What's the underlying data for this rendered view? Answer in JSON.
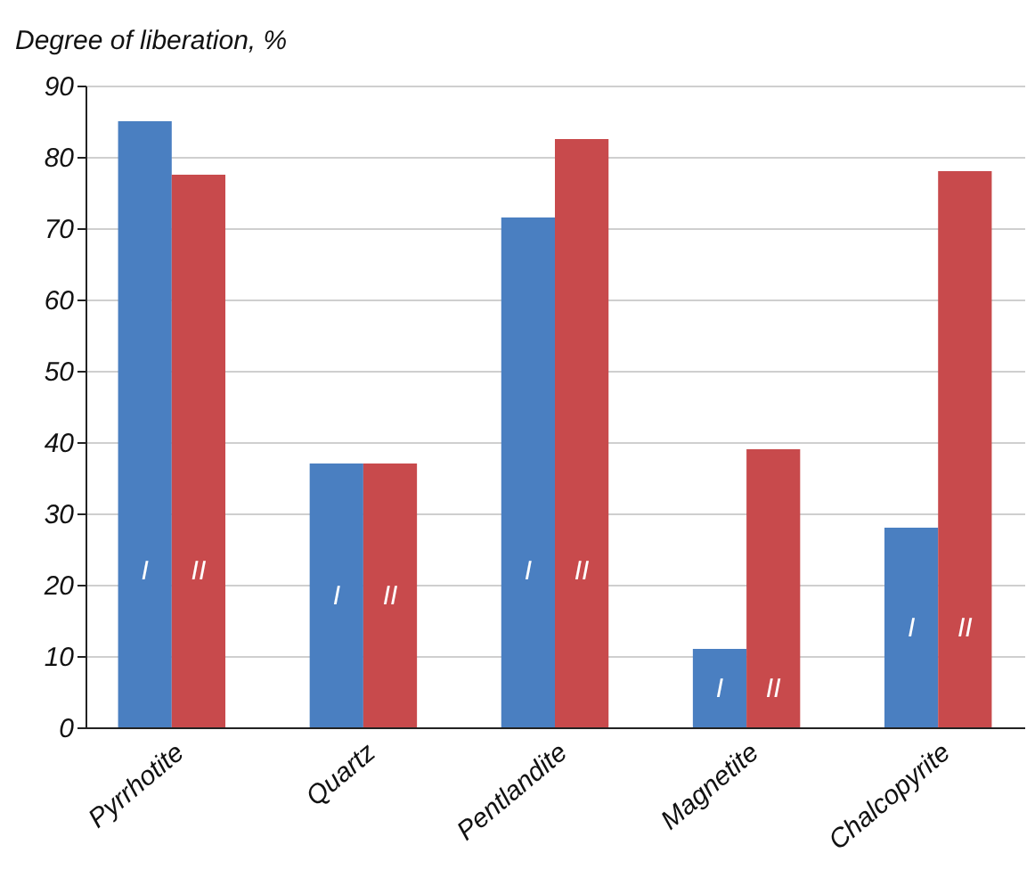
{
  "chart_data": {
    "type": "bar",
    "ylabel": "Degree of liberation, %",
    "categories": [
      "Pyrrhotite",
      "Quartz",
      "Pentlandite",
      "Magnetite",
      "Chalcopyrite"
    ],
    "series": [
      {
        "name": "I",
        "color": "#4a7fc1",
        "values": [
          85,
          37,
          71.5,
          11,
          28
        ]
      },
      {
        "name": "II",
        "color": "#c84a4c",
        "values": [
          77.5,
          37,
          82.5,
          39,
          78
        ]
      }
    ],
    "ylim": [
      0,
      90
    ],
    "yticks": [
      0,
      10,
      20,
      30,
      40,
      50,
      60,
      70,
      80,
      90
    ],
    "grid": "y",
    "legend": false
  }
}
